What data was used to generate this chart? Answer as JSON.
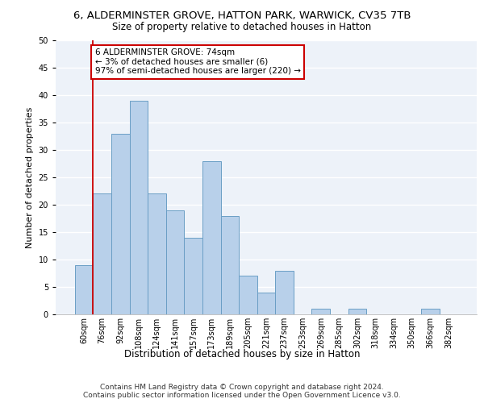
{
  "title1": "6, ALDERMINSTER GROVE, HATTON PARK, WARWICK, CV35 7TB",
  "title2": "Size of property relative to detached houses in Hatton",
  "xlabel": "Distribution of detached houses by size in Hatton",
  "ylabel": "Number of detached properties",
  "categories": [
    "60sqm",
    "76sqm",
    "92sqm",
    "108sqm",
    "124sqm",
    "141sqm",
    "157sqm",
    "173sqm",
    "189sqm",
    "205sqm",
    "221sqm",
    "237sqm",
    "253sqm",
    "269sqm",
    "285sqm",
    "302sqm",
    "318sqm",
    "334sqm",
    "350sqm",
    "366sqm",
    "382sqm"
  ],
  "values": [
    9,
    22,
    33,
    39,
    22,
    19,
    14,
    28,
    18,
    7,
    4,
    8,
    0,
    1,
    0,
    1,
    0,
    0,
    0,
    1,
    0
  ],
  "bar_color": "#b8d0ea",
  "bar_edge_color": "#6a9ec5",
  "annotation_text": "6 ALDERMINSTER GROVE: 74sqm\n← 3% of detached houses are smaller (6)\n97% of semi-detached houses are larger (220) →",
  "annotation_box_color": "#ffffff",
  "annotation_border_color": "#cc0000",
  "footer1": "Contains HM Land Registry data © Crown copyright and database right 2024.",
  "footer2": "Contains public sector information licensed under the Open Government Licence v3.0.",
  "ylim": [
    0,
    50
  ],
  "yticks": [
    0,
    5,
    10,
    15,
    20,
    25,
    30,
    35,
    40,
    45,
    50
  ],
  "background_color": "#edf2f9",
  "grid_color": "#ffffff",
  "vline_color": "#cc0000",
  "title1_fontsize": 9.5,
  "title2_fontsize": 8.5,
  "xlabel_fontsize": 8.5,
  "ylabel_fontsize": 8,
  "tick_fontsize": 7,
  "annotation_fontsize": 7.5,
  "footer_fontsize": 6.5
}
